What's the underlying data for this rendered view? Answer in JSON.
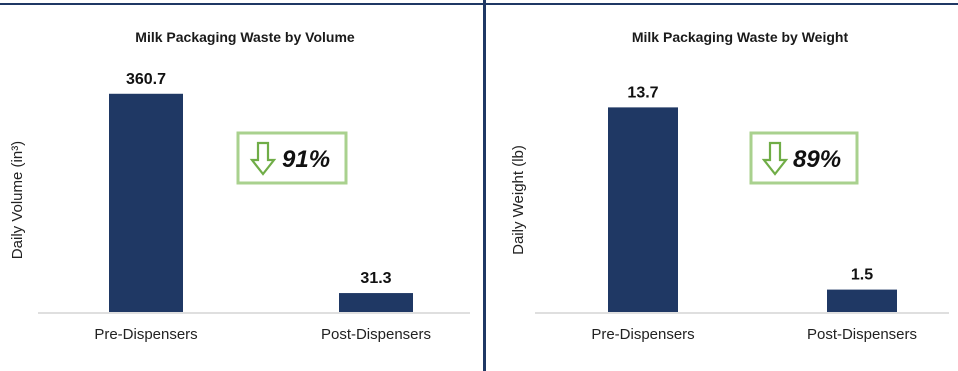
{
  "chart_data": [
    {
      "type": "bar",
      "title": "Milk Packaging Waste by Volume",
      "ylabel": "Daily Volume (in³)",
      "xlabel": "",
      "categories": [
        "Pre-Dispensers",
        "Post-Dispensers"
      ],
      "values": [
        360.7,
        31.3
      ],
      "data_labels": [
        "360.7",
        "31.3"
      ],
      "ylim": [
        0,
        400
      ],
      "grid": false,
      "bar_color": "#1f3864",
      "callout": {
        "text": "91%",
        "icon": "down-arrow-icon",
        "border_color": "#a9d18e",
        "arrow_color": "#70ad47"
      }
    },
    {
      "type": "bar",
      "title": "Milk Packaging Waste by Weight",
      "ylabel": "Daily Weight (lb)",
      "xlabel": "",
      "categories": [
        "Pre-Dispensers",
        "Post-Dispensers"
      ],
      "values": [
        13.7,
        1.5
      ],
      "data_labels": [
        "13.7",
        "1.5"
      ],
      "ylim": [
        0,
        15.6
      ],
      "grid": false,
      "bar_color": "#1f3864",
      "callout": {
        "text": "89%",
        "icon": "down-arrow-icon",
        "border_color": "#a9d18e",
        "arrow_color": "#70ad47"
      }
    }
  ]
}
